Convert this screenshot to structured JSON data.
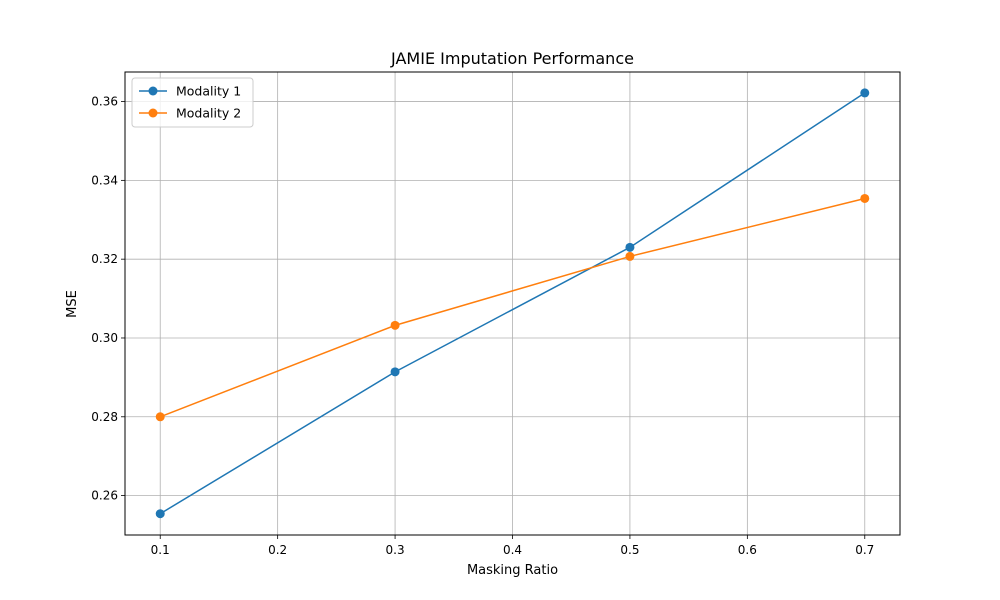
{
  "chart_data": {
    "type": "line",
    "title": "JAMIE Imputation Performance",
    "xlabel": "Masking Ratio",
    "ylabel": "MSE",
    "x": [
      0.1,
      0.3,
      0.5,
      0.7
    ],
    "series": [
      {
        "name": "Modality 1",
        "color": "#1f77b4",
        "values": [
          0.2554,
          0.2914,
          0.323,
          0.3622
        ]
      },
      {
        "name": "Modality 2",
        "color": "#ff7f0e",
        "values": [
          0.28,
          0.3032,
          0.3207,
          0.3354
        ]
      }
    ],
    "xlim": [
      0.07,
      0.73
    ],
    "ylim": [
      0.25,
      0.3675
    ],
    "xticks": [
      0.1,
      0.2,
      0.3,
      0.4,
      0.5,
      0.6,
      0.7
    ],
    "xtick_labels": [
      "0.1",
      "0.2",
      "0.3",
      "0.4",
      "0.5",
      "0.6",
      "0.7"
    ],
    "yticks": [
      0.26,
      0.28,
      0.3,
      0.32,
      0.34,
      0.36
    ],
    "ytick_labels": [
      "0.26",
      "0.28",
      "0.30",
      "0.32",
      "0.34",
      "0.36"
    ],
    "grid": true,
    "legend_position": "top-left",
    "marker": "circle"
  }
}
